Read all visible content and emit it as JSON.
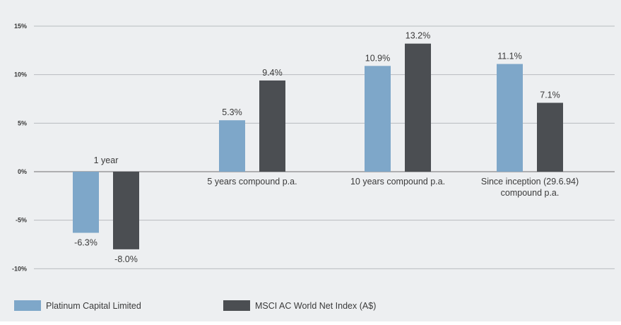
{
  "chart_data": {
    "type": "bar",
    "categories": [
      [
        "1 year"
      ],
      [
        "5 years compound p.a."
      ],
      [
        "10 years compound p.a."
      ],
      [
        "Since inception (29.6.94)",
        "compound p.a."
      ]
    ],
    "series": [
      {
        "name": "Platinum Capital Limited",
        "color": "#7ea7c9",
        "values": [
          -6.3,
          5.3,
          10.9,
          11.1
        ],
        "labels": [
          "-6.3%",
          "5.3%",
          "10.9%",
          "11.1%"
        ]
      },
      {
        "name": "MSCI AC World Net Index (A$)",
        "color": "#4b4e52",
        "values": [
          -8.0,
          9.4,
          13.2,
          7.1
        ],
        "labels": [
          "-8.0%",
          "9.4%",
          "13.2%",
          "7.1%"
        ]
      }
    ],
    "ylim": [
      -10,
      15
    ],
    "yticks": [
      15,
      10,
      5,
      0,
      -5,
      -10
    ],
    "ytick_labels": [
      "15%",
      "10%",
      "5%",
      "0%",
      "-5%",
      "-10%"
    ],
    "grid": true,
    "legend_position": "bottom-left"
  }
}
